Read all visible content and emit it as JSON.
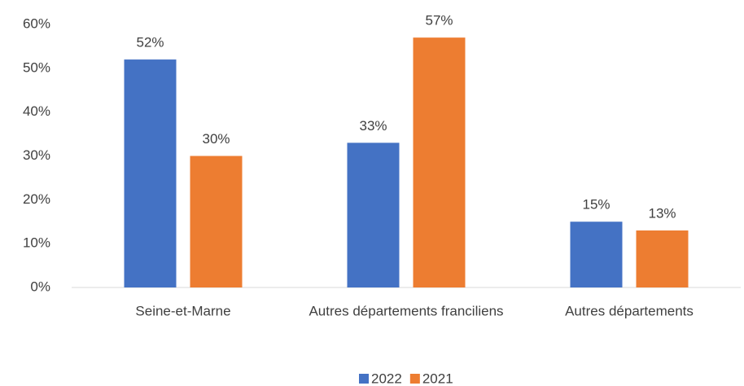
{
  "chart_data": {
    "type": "bar",
    "categories": [
      "Seine-et-Marne",
      "Autres départements franciliens",
      "Autres départements"
    ],
    "series": [
      {
        "name": "2022",
        "color": "#4472c4",
        "values": [
          52,
          33,
          15
        ],
        "value_labels": [
          "52%",
          "33%",
          "15%"
        ]
      },
      {
        "name": "2021",
        "color": "#ed7d31",
        "values": [
          30,
          57,
          13
        ],
        "value_labels": [
          "30%",
          "57%",
          "13%"
        ]
      }
    ],
    "ylim": [
      0,
      60
    ],
    "yticks": [
      {
        "value": 0,
        "label": "0%"
      },
      {
        "value": 10,
        "label": "10%"
      },
      {
        "value": 20,
        "label": "20%"
      },
      {
        "value": 30,
        "label": "30%"
      },
      {
        "value": 40,
        "label": "40%"
      },
      {
        "value": 50,
        "label": "50%"
      },
      {
        "value": 60,
        "label": "60%"
      }
    ],
    "grid": false,
    "legend": "bottom"
  }
}
